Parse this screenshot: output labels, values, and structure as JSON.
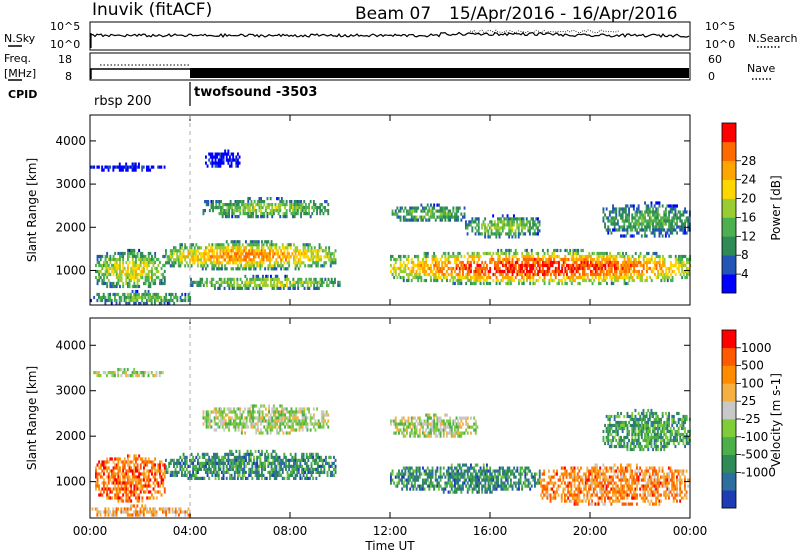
{
  "header": {
    "site": "Inuvik (fitACF)",
    "beam": "Beam 07",
    "dates": "15/Apr/2016 - 16/Apr/2016"
  },
  "ancillary": {
    "nsky_label": "N.Sky",
    "nsearch_label": "N.Search",
    "noise_ticks": [
      "10^5",
      "10^0"
    ],
    "freq_label_line1": "Freq.",
    "freq_label_line2": "[MHz]",
    "freq_ticks": [
      "18",
      "8"
    ],
    "nave_label": "Nave",
    "nave_ticks": [
      "60",
      "0"
    ],
    "cpid_label": "CPID",
    "programs": [
      {
        "name": "rbsp 200",
        "start_hour": 0,
        "end_hour": 4
      },
      {
        "name": "twofsound -3503",
        "start_hour": 4,
        "end_hour": 24
      }
    ]
  },
  "chart_data": [
    {
      "type": "heatmap",
      "panel": "power",
      "ylabel": "Slant Range [km]",
      "xlabel": "",
      "xlim_hours": [
        0,
        24
      ],
      "ylim": [
        200,
        4600
      ],
      "yticks": [
        "1000",
        "2000",
        "3000",
        "4000"
      ],
      "colorbar": {
        "label": "Power [dB]",
        "ticks": [
          "4",
          "8",
          "12",
          "16",
          "20",
          "24",
          "28"
        ],
        "colors": [
          "#0000ff",
          "#2355b5",
          "#2f8a55",
          "#4caf50",
          "#9acd32",
          "#ffd700",
          "#ffa500",
          "#ff6a00",
          "#ff0000"
        ]
      },
      "echo_regions": [
        {
          "t0": 0.0,
          "t1": 3.0,
          "r0": 3350,
          "r1": 3500,
          "level": 0.05
        },
        {
          "t0": 4.6,
          "t1": 6.0,
          "r0": 3400,
          "r1": 3800,
          "level": 0.05
        },
        {
          "t0": 4.5,
          "t1": 9.5,
          "r0": 2250,
          "r1": 2700,
          "level": 0.45
        },
        {
          "t0": 12.0,
          "t1": 15.0,
          "r0": 2150,
          "r1": 2550,
          "level": 0.4
        },
        {
          "t0": 15.0,
          "t1": 18.0,
          "r0": 1800,
          "r1": 2300,
          "level": 0.45
        },
        {
          "t0": 3.0,
          "t1": 9.8,
          "r0": 1050,
          "r1": 1700,
          "level": 0.7
        },
        {
          "t0": 0.2,
          "t1": 3.0,
          "r0": 600,
          "r1": 1500,
          "level": 0.55
        },
        {
          "t0": 4.0,
          "t1": 10.0,
          "r0": 600,
          "r1": 900,
          "level": 0.5
        },
        {
          "t0": 12.0,
          "t1": 24.0,
          "r0": 700,
          "r1": 1500,
          "level": 0.85
        },
        {
          "t0": 20.5,
          "t1": 24.0,
          "r0": 1800,
          "r1": 2600,
          "level": 0.35
        },
        {
          "t0": 0.0,
          "t1": 4.0,
          "r0": 250,
          "r1": 550,
          "level": 0.4
        }
      ]
    },
    {
      "type": "heatmap",
      "panel": "velocity",
      "ylabel": "Slant Range [km]",
      "xlabel": "Time UT",
      "xlim_hours": [
        0,
        24
      ],
      "ylim": [
        200,
        4600
      ],
      "xticks": [
        "00:00",
        "04:00",
        "08:00",
        "12:00",
        "16:00",
        "20:00",
        "00:00"
      ],
      "yticks": [
        "1000",
        "2000",
        "3000",
        "4000"
      ],
      "colorbar": {
        "label": "Velocity [m s-1]",
        "ticks": [
          "1000",
          "500",
          "100",
          "25",
          "-25",
          "-100",
          "-500",
          "-1000"
        ],
        "colors": [
          "#1e3cb4",
          "#2d6e9e",
          "#2f8a55",
          "#4daf4a",
          "#7fcd3a",
          "#c8c8c8",
          "#f5b041",
          "#ff8c00",
          "#ff5a00",
          "#ff0000"
        ]
      },
      "echo_regions": [
        {
          "t0": 0.0,
          "t1": 3.0,
          "r0": 3350,
          "r1": 3500,
          "level": 0.5
        },
        {
          "t0": 4.5,
          "t1": 9.5,
          "r0": 2100,
          "r1": 2700,
          "level": 0.5
        },
        {
          "t0": 12.0,
          "t1": 15.5,
          "r0": 2000,
          "r1": 2500,
          "level": 0.5
        },
        {
          "t0": 3.0,
          "t1": 9.8,
          "r0": 1050,
          "r1": 1700,
          "level": 0.25
        },
        {
          "t0": 0.2,
          "t1": 3.0,
          "r0": 600,
          "r1": 1600,
          "level": 0.8
        },
        {
          "t0": 12.0,
          "t1": 18.0,
          "r0": 800,
          "r1": 1400,
          "level": 0.25
        },
        {
          "t0": 18.0,
          "t1": 24.0,
          "r0": 500,
          "r1": 1400,
          "level": 0.75
        },
        {
          "t0": 0.0,
          "t1": 4.0,
          "r0": 250,
          "r1": 500,
          "level": 0.7
        },
        {
          "t0": 20.5,
          "t1": 24.0,
          "r0": 1700,
          "r1": 2600,
          "level": 0.3
        }
      ]
    }
  ]
}
